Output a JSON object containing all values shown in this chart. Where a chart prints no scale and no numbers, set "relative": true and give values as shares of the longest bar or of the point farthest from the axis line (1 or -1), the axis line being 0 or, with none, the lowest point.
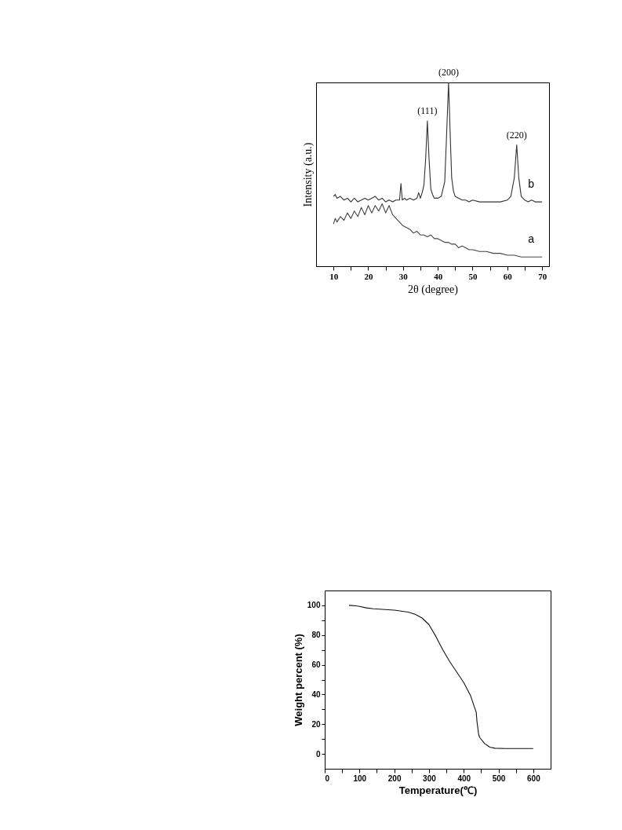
{
  "chart_data": [
    {
      "type": "line",
      "relative": true,
      "xlabel": "2θ (degree)",
      "ylabel": "Intensity (a.u.)",
      "xlim": [
        5,
        72
      ],
      "xticks": [
        10,
        {
          "value": 15,
          "label": null
        },
        20,
        {
          "value": 25,
          "label": null
        },
        30,
        {
          "value": 35,
          "label": null
        },
        40,
        {
          "value": 45,
          "label": null
        },
        50,
        {
          "value": 55,
          "label": null
        },
        60,
        {
          "value": 65,
          "label": null
        },
        70
      ],
      "tick_labels": "x",
      "grid": false,
      "marker": "none",
      "line_style": "solid",
      "annotations": [
        {
          "text": "(111)",
          "x": 37,
          "y": 0.79
        },
        {
          "text": "(200)",
          "x": 43.1,
          "y": 1.0
        },
        {
          "text": "(220)",
          "x": 62.7,
          "y": 0.66
        }
      ],
      "series": [
        {
          "name": "b",
          "color": "#333333",
          "x": [
            10,
            10.5,
            11,
            12,
            13,
            14,
            15,
            16,
            17,
            18,
            19,
            20,
            21,
            22,
            23,
            24,
            25,
            26,
            27,
            28,
            29,
            29.4,
            29.8,
            30.5,
            31,
            32,
            33,
            34,
            34.5,
            35,
            35.5,
            36,
            36.5,
            37,
            37.5,
            38,
            38.5,
            39,
            40,
            41,
            42,
            42.5,
            43.1,
            43.6,
            44,
            44.5,
            45,
            46,
            47,
            48,
            49,
            50,
            52,
            54,
            56,
            58,
            60,
            61,
            62,
            62.7,
            63.3,
            64,
            65,
            66,
            67,
            68,
            69,
            70
          ],
          "values": [
            0.38,
            0.39,
            0.37,
            0.38,
            0.36,
            0.37,
            0.35,
            0.37,
            0.35,
            0.36,
            0.37,
            0.36,
            0.37,
            0.38,
            0.36,
            0.37,
            0.35,
            0.36,
            0.35,
            0.36,
            0.36,
            0.45,
            0.36,
            0.37,
            0.36,
            0.37,
            0.36,
            0.37,
            0.4,
            0.37,
            0.4,
            0.44,
            0.58,
            0.79,
            0.58,
            0.42,
            0.39,
            0.37,
            0.37,
            0.38,
            0.46,
            0.7,
            1.0,
            0.7,
            0.48,
            0.41,
            0.38,
            0.37,
            0.36,
            0.36,
            0.35,
            0.36,
            0.35,
            0.35,
            0.35,
            0.35,
            0.36,
            0.38,
            0.48,
            0.66,
            0.48,
            0.38,
            0.36,
            0.35,
            0.36,
            0.35,
            0.35,
            0.35
          ]
        },
        {
          "name": "a",
          "color": "#444444",
          "x": [
            10,
            10.5,
            11,
            12,
            13,
            14,
            15,
            16,
            17,
            18,
            19,
            20,
            21,
            22,
            23,
            24,
            25,
            26,
            27,
            28,
            29,
            30,
            31,
            32,
            33,
            34,
            35,
            36,
            37,
            38,
            39,
            40,
            41,
            42,
            43,
            44,
            45,
            46,
            47,
            48,
            49,
            50,
            52,
            54,
            56,
            58,
            60,
            62,
            64,
            66,
            68,
            70
          ],
          "values": [
            0.23,
            0.26,
            0.24,
            0.27,
            0.25,
            0.29,
            0.26,
            0.3,
            0.27,
            0.32,
            0.28,
            0.33,
            0.29,
            0.33,
            0.3,
            0.34,
            0.29,
            0.33,
            0.28,
            0.26,
            0.24,
            0.22,
            0.21,
            0.2,
            0.18,
            0.19,
            0.17,
            0.17,
            0.16,
            0.17,
            0.15,
            0.15,
            0.14,
            0.13,
            0.13,
            0.12,
            0.12,
            0.1,
            0.11,
            0.1,
            0.09,
            0.09,
            0.08,
            0.08,
            0.07,
            0.07,
            0.06,
            0.06,
            0.05,
            0.05,
            0.05,
            0.05
          ]
        }
      ]
    },
    {
      "type": "line",
      "xlabel": "Temperature(℃)",
      "ylabel": "Weight percent (%)",
      "xlim": [
        0,
        650
      ],
      "ylim": [
        -10,
        110
      ],
      "xticks": [
        0,
        {
          "value": 50,
          "label": null
        },
        100,
        {
          "value": 150,
          "label": null
        },
        200,
        {
          "value": 250,
          "label": null
        },
        300,
        {
          "value": 350,
          "label": null
        },
        400,
        {
          "value": 450,
          "label": null
        },
        500,
        {
          "value": 550,
          "label": null
        },
        600
      ],
      "yticks": [
        0,
        {
          "value": 10,
          "label": null
        },
        20,
        {
          "value": 30,
          "label": null
        },
        40,
        {
          "value": 50,
          "label": null
        },
        60,
        {
          "value": 70,
          "label": null
        },
        80,
        {
          "value": 90,
          "label": null
        },
        100
      ],
      "grid": false,
      "marker": "none",
      "line_style": "solid",
      "series": [
        {
          "color": "#111111",
          "x": [
            70,
            90,
            100,
            120,
            140,
            200,
            240,
            260,
            280,
            300,
            320,
            340,
            360,
            380,
            400,
            420,
            430,
            436,
            438,
            443,
            446,
            460,
            475,
            490,
            520,
            600
          ],
          "values": [
            100,
            99.7,
            99.3,
            98.3,
            97.7,
            96.8,
            95.5,
            94,
            91.5,
            87,
            79,
            70,
            62,
            55,
            48,
            39,
            32,
            28,
            22,
            13,
            11,
            7,
            4.5,
            3.8,
            3.6,
            3.6
          ]
        }
      ]
    }
  ]
}
